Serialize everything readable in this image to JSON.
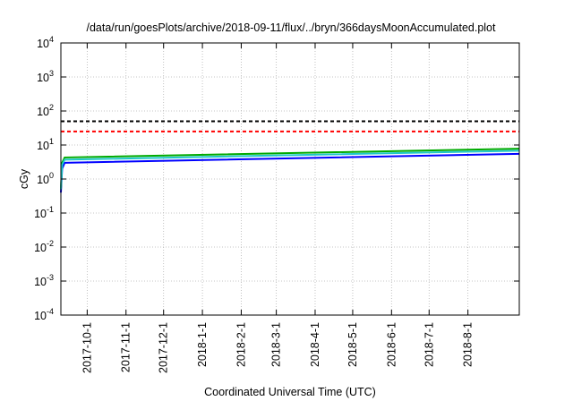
{
  "chart_data": {
    "type": "line",
    "title": "/data/run/goesPlots/archive/2018-09-11/flux/../bryn/366daysMoonAccumulated.plot",
    "xlabel": "Coordinated Universal Time (UTC)",
    "ylabel": "cGy",
    "x_range": [
      "2017-09-10",
      "2018-09-11"
    ],
    "y_scale": "log",
    "ylim": [
      0.0001,
      10000
    ],
    "y_ticks": [
      {
        "base": "10",
        "exp": "-4",
        "value": 0.0001
      },
      {
        "base": "10",
        "exp": "-3",
        "value": 0.001
      },
      {
        "base": "10",
        "exp": "-2",
        "value": 0.01
      },
      {
        "base": "10",
        "exp": "-1",
        "value": 0.1
      },
      {
        "base": "10",
        "exp": "0",
        "value": 1
      },
      {
        "base": "10",
        "exp": "1",
        "value": 10
      },
      {
        "base": "10",
        "exp": "2",
        "value": 100
      },
      {
        "base": "10",
        "exp": "3",
        "value": 1000
      },
      {
        "base": "10",
        "exp": "4",
        "value": 10000
      }
    ],
    "x_ticks": [
      {
        "label": "2017-10-1",
        "date": "2017-10-01"
      },
      {
        "label": "2017-11-1",
        "date": "2017-11-01"
      },
      {
        "label": "2017-12-1",
        "date": "2017-12-01"
      },
      {
        "label": "2018-1-1",
        "date": "2018-01-01"
      },
      {
        "label": "2018-2-1",
        "date": "2018-02-01"
      },
      {
        "label": "2018-3-1",
        "date": "2018-03-01"
      },
      {
        "label": "2018-4-1",
        "date": "2018-04-01"
      },
      {
        "label": "2018-5-1",
        "date": "2018-05-01"
      },
      {
        "label": "2018-6-1",
        "date": "2018-06-01"
      },
      {
        "label": "2018-7-1",
        "date": "2018-07-01"
      },
      {
        "label": "2018-8-1",
        "date": "2018-08-01"
      }
    ],
    "grid": true,
    "reference_lines": [
      {
        "value": 50,
        "color": "#000000",
        "style": "dashed"
      },
      {
        "value": 25,
        "color": "#ff0000",
        "style": "dashed"
      }
    ],
    "series": [
      {
        "color": "#0000ff",
        "x": [
          "2017-09-10",
          "2017-09-11",
          "2017-09-13",
          "2018-09-11"
        ],
        "y": [
          0.4,
          2.0,
          3.0,
          5.5
        ]
      },
      {
        "color": "#00aa00",
        "x": [
          "2017-09-10",
          "2017-09-11",
          "2017-09-13",
          "2018-09-11"
        ],
        "y": [
          0.5,
          3.0,
          4.3,
          7.8
        ]
      },
      {
        "color": "#1ec8c8",
        "x": [
          "2017-09-10",
          "2017-09-11",
          "2017-09-13",
          "2018-09-11"
        ],
        "y": [
          0.5,
          2.6,
          3.7,
          6.8
        ]
      }
    ]
  }
}
